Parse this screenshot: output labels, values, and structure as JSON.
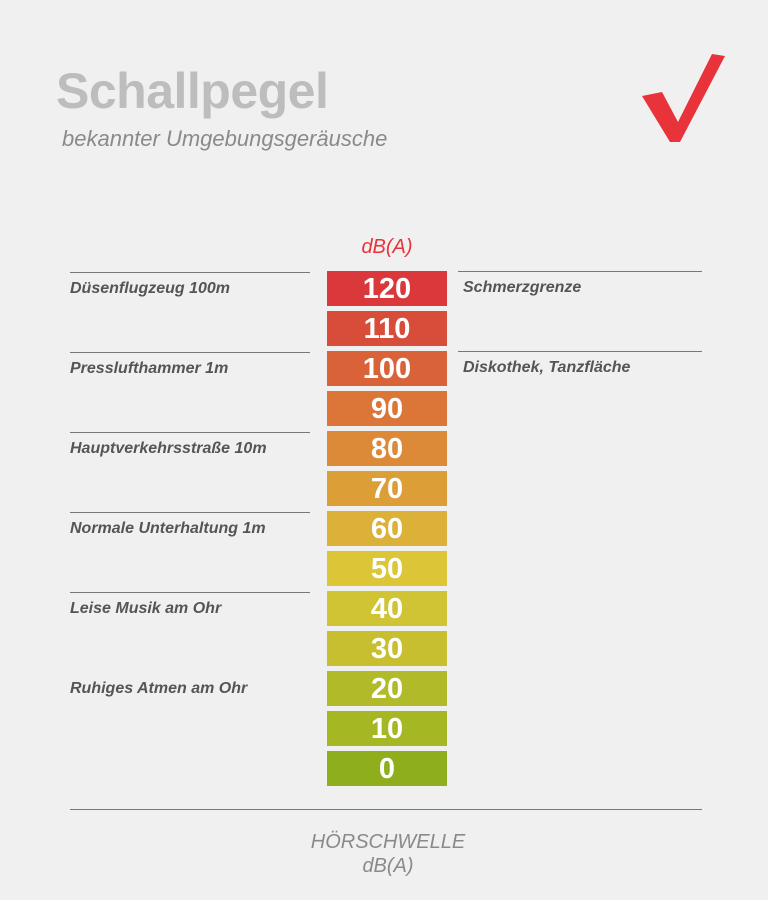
{
  "title": "Schallpegel",
  "subtitle": "bekannter Umgebungsgeräusche",
  "unit_top": "dB(A)",
  "accent_color": "#e8333a",
  "logo_icon": "red-checkmark",
  "scale": [
    {
      "value": "120",
      "color": "#da383a"
    },
    {
      "value": "110",
      "color": "#d84c3a"
    },
    {
      "value": "100",
      "color": "#da6239"
    },
    {
      "value": "90",
      "color": "#dc7538"
    },
    {
      "value": "80",
      "color": "#dc8a38"
    },
    {
      "value": "70",
      "color": "#dc9e37"
    },
    {
      "value": "60",
      "color": "#dcb138"
    },
    {
      "value": "50",
      "color": "#dcc537"
    },
    {
      "value": "40",
      "color": "#d1c434"
    },
    {
      "value": "30",
      "color": "#c8bf30"
    },
    {
      "value": "20",
      "color": "#b1ba28"
    },
    {
      "value": "10",
      "color": "#a5b824"
    },
    {
      "value": "0",
      "color": "#8fae1c"
    }
  ],
  "left_labels": [
    {
      "text": "Düsenflugzeug 100m",
      "level": "120"
    },
    {
      "text": "Presslufthammer 1m",
      "level": "100"
    },
    {
      "text": "Hauptverkehrsstraße 10m",
      "level": "80"
    },
    {
      "text": "Normale Unterhaltung 1m",
      "level": "60"
    },
    {
      "text": "Leise Musik am Ohr",
      "level": "40"
    },
    {
      "text": "Ruhiges Atmen am Ohr",
      "level": "20"
    }
  ],
  "right_labels": [
    {
      "text": "Schmerzgrenze",
      "level": "120"
    },
    {
      "text": "Diskothek, Tanzfläche",
      "level": "100"
    }
  ],
  "bottom_label": {
    "line1": "HÖRSCHWELLE",
    "line2": "dB(A)"
  }
}
